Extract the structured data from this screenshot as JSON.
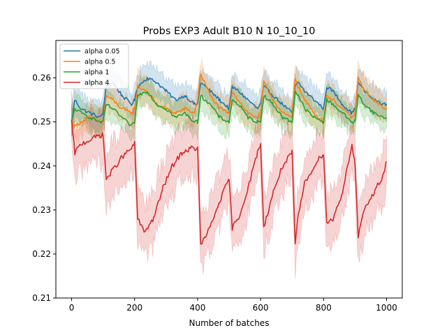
{
  "chart_data": {
    "type": "line",
    "title": "Probs EXP3 Adult B10 N 10_10_10",
    "xlabel": "Number of batches",
    "ylabel": "",
    "xlim": [
      -50,
      1050
    ],
    "ylim": [
      0.21,
      0.2685
    ],
    "x_ticks": [
      0,
      200,
      400,
      600,
      800,
      1000
    ],
    "y_ticks": [
      0.21,
      0.22,
      0.23,
      0.24,
      0.25,
      0.26
    ],
    "grid": false,
    "legend_position": "upper left",
    "shaded_band": true,
    "series": [
      {
        "name": "alpha 0.05",
        "color": "#1f77b4",
        "band_color": "#1f77b4",
        "x": [
          0,
          10,
          30,
          60,
          90,
          100,
          110,
          130,
          160,
          190,
          200,
          210,
          240,
          270,
          300,
          330,
          360,
          390,
          400,
          410,
          440,
          470,
          500,
          510,
          530,
          560,
          590,
          600,
          610,
          640,
          670,
          700,
          710,
          720,
          740,
          770,
          800,
          810,
          830,
          860,
          890,
          900,
          910,
          930,
          960,
          990,
          1000
        ],
        "values": [
          0.25,
          0.255,
          0.253,
          0.252,
          0.251,
          0.252,
          0.258,
          0.259,
          0.256,
          0.254,
          0.255,
          0.258,
          0.26,
          0.259,
          0.257,
          0.255,
          0.256,
          0.254,
          0.254,
          0.259,
          0.257,
          0.255,
          0.253,
          0.258,
          0.257,
          0.255,
          0.253,
          0.254,
          0.258,
          0.256,
          0.254,
          0.252,
          0.258,
          0.259,
          0.257,
          0.255,
          0.253,
          0.258,
          0.257,
          0.254,
          0.252,
          0.253,
          0.259,
          0.257,
          0.255,
          0.254,
          0.254
        ],
        "band_width": 0.003
      },
      {
        "name": "alpha 0.5",
        "color": "#ff7f0e",
        "band_color": "#ff7f0e",
        "x": [
          0,
          10,
          30,
          60,
          90,
          100,
          110,
          130,
          160,
          190,
          200,
          210,
          240,
          270,
          300,
          330,
          360,
          390,
          400,
          410,
          440,
          470,
          500,
          510,
          530,
          560,
          590,
          600,
          610,
          640,
          670,
          700,
          710,
          720,
          740,
          770,
          800,
          810,
          830,
          860,
          890,
          900,
          910,
          930,
          960,
          990,
          1000
        ],
        "values": [
          0.25,
          0.249,
          0.25,
          0.251,
          0.25,
          0.25,
          0.256,
          0.255,
          0.253,
          0.252,
          0.253,
          0.258,
          0.257,
          0.254,
          0.253,
          0.252,
          0.253,
          0.252,
          0.255,
          0.261,
          0.256,
          0.253,
          0.252,
          0.257,
          0.255,
          0.252,
          0.251,
          0.252,
          0.259,
          0.255,
          0.252,
          0.251,
          0.26,
          0.258,
          0.255,
          0.252,
          0.25,
          0.256,
          0.255,
          0.253,
          0.251,
          0.252,
          0.26,
          0.257,
          0.255,
          0.253,
          0.253
        ],
        "band_width": 0.003
      },
      {
        "name": "alpha 1",
        "color": "#2ca02c",
        "band_color": "#2ca02c",
        "x": [
          0,
          10,
          30,
          60,
          90,
          100,
          110,
          130,
          160,
          190,
          200,
          210,
          240,
          270,
          300,
          330,
          360,
          390,
          400,
          410,
          440,
          470,
          500,
          510,
          530,
          560,
          590,
          600,
          610,
          640,
          670,
          700,
          710,
          720,
          740,
          770,
          800,
          810,
          830,
          860,
          890,
          900,
          910,
          930,
          960,
          990,
          1000
        ],
        "values": [
          0.25,
          0.253,
          0.252,
          0.251,
          0.25,
          0.25,
          0.254,
          0.253,
          0.251,
          0.249,
          0.25,
          0.256,
          0.257,
          0.254,
          0.253,
          0.251,
          0.252,
          0.25,
          0.25,
          0.256,
          0.254,
          0.251,
          0.25,
          0.255,
          0.254,
          0.251,
          0.25,
          0.25,
          0.256,
          0.254,
          0.251,
          0.25,
          0.257,
          0.256,
          0.253,
          0.251,
          0.25,
          0.255,
          0.254,
          0.252,
          0.25,
          0.25,
          0.256,
          0.254,
          0.252,
          0.251,
          0.251
        ],
        "band_width": 0.003
      },
      {
        "name": "alpha 4",
        "color": "#d62728",
        "band_color": "#d62728",
        "x": [
          0,
          10,
          30,
          60,
          90,
          100,
          110,
          130,
          160,
          190,
          200,
          210,
          230,
          260,
          290,
          320,
          350,
          380,
          400,
          410,
          440,
          470,
          500,
          510,
          530,
          560,
          590,
          600,
          610,
          640,
          670,
          700,
          710,
          720,
          740,
          770,
          800,
          810,
          830,
          860,
          890,
          900,
          910,
          930,
          960,
          990,
          1000
        ],
        "values": [
          0.25,
          0.243,
          0.245,
          0.246,
          0.247,
          0.247,
          0.237,
          0.239,
          0.242,
          0.244,
          0.245,
          0.228,
          0.225,
          0.228,
          0.235,
          0.24,
          0.243,
          0.244,
          0.244,
          0.222,
          0.226,
          0.232,
          0.237,
          0.226,
          0.228,
          0.235,
          0.243,
          0.245,
          0.226,
          0.234,
          0.24,
          0.243,
          0.222,
          0.229,
          0.236,
          0.24,
          0.243,
          0.227,
          0.228,
          0.234,
          0.245,
          0.24,
          0.224,
          0.23,
          0.234,
          0.238,
          0.241
        ],
        "band_width": 0.006
      }
    ]
  }
}
